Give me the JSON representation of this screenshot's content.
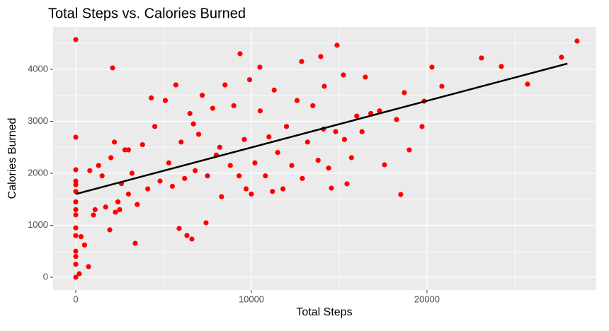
{
  "chart_data": {
    "type": "scatter",
    "title": "Total Steps vs. Calories Burned",
    "x_label": "Total Steps",
    "y_label": "Calories Burned",
    "color": "#ff0000",
    "line_color": "#000000",
    "grid": true,
    "xlim": [
      -1290,
      29640
    ],
    "ylim": [
      -245,
      4816
    ],
    "xticks": [
      0,
      10000,
      20000
    ],
    "yticks": [
      0,
      1000,
      2000,
      3000,
      4000
    ],
    "trend": {
      "x": [
        0,
        28000
      ],
      "values": [
        1600,
        4110
      ]
    },
    "x": [
      0,
      2097,
      28548,
      27661,
      23105,
      24234,
      20282,
      20847,
      25726,
      19839,
      18710,
      19718,
      18992,
      18508,
      17581,
      18266,
      14879,
      9355,
      13952,
      14153,
      15242,
      16492,
      12863,
      10484,
      15444,
      14556,
      0,
      0,
      0,
      0,
      0,
      0,
      0,
      0,
      0,
      0,
      0,
      0,
      0,
      0,
      200,
      726,
      1008,
      1935,
      2258,
      3387,
      6331,
      6613,
      7419,
      5887,
      300,
      500,
      800,
      1100,
      1300,
      1500,
      1700,
      2000,
      2200,
      2400,
      2600,
      2800,
      3000,
      3200,
      3500,
      3800,
      4100,
      4300,
      4500,
      4800,
      5100,
      5300,
      5500,
      5700,
      6000,
      6200,
      6500,
      6800,
      7000,
      7200,
      7500,
      7800,
      8000,
      8300,
      8500,
      8800,
      9000,
      9300,
      9600,
      9900,
      10200,
      10500,
      10800,
      11000,
      11300,
      11500,
      11800,
      12000,
      12300,
      12600,
      12900,
      13200,
      13500,
      13800,
      14100,
      14400,
      14800,
      15300,
      15700,
      16000,
      16300,
      16800,
      17300,
      10000,
      11200,
      3000,
      2500,
      6700,
      8200,
      9700
    ],
    "values": [
      4571,
      4027,
      4544,
      4231,
      4218,
      4054,
      4041,
      3673,
      3714,
      3388,
      3551,
      2898,
      2449,
      1592,
      2163,
      3034,
      4463,
      4299,
      4245,
      3673,
      3891,
      3850,
      4150,
      4041,
      1796,
      1714,
      2694,
      2068,
      1850,
      1780,
      1650,
      1450,
      1300,
      1200,
      950,
      800,
      500,
      400,
      250,
      0,
      68,
      204,
      1197,
      912,
      1252,
      653,
      803,
      735,
      1048,
      939,
      780,
      620,
      2050,
      1300,
      2150,
      1950,
      1350,
      2300,
      2600,
      1450,
      1800,
      2450,
      1600,
      2000,
      1400,
      2550,
      1700,
      3450,
      2900,
      1850,
      3400,
      2200,
      1750,
      3700,
      2600,
      1900,
      3150,
      2050,
      2750,
      3500,
      1950,
      3250,
      2350,
      1550,
      3700,
      2150,
      3300,
      1950,
      2650,
      3800,
      2200,
      3200,
      1950,
      2700,
      3600,
      2400,
      1700,
      2900,
      2150,
      3400,
      1900,
      2600,
      3300,
      2250,
      2850,
      2100,
      2800,
      2650,
      2300,
      3100,
      2800,
      3150,
      3200,
      1600,
      1650,
      2450,
      1300,
      2950,
      2500,
      1700
    ]
  }
}
